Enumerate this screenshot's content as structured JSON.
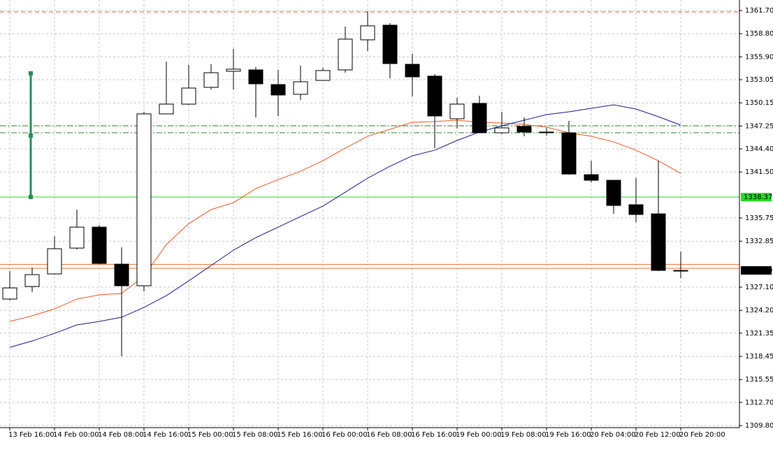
{
  "chart_data": {
    "type": "candlestick",
    "categories": [
      "13 Feb 16:00",
      null,
      "14 Feb 00:00",
      null,
      "14 Feb 08:00",
      null,
      "14 Feb 16:00",
      null,
      "15 Feb 00:00",
      null,
      "15 Feb 08:00",
      null,
      "15 Feb 16:00",
      null,
      "16 Feb 00:00",
      null,
      "16 Feb 08:00",
      null,
      "16 Feb 16:00",
      null,
      "19 Feb 00:00",
      null,
      "19 Feb 08:00",
      null,
      "19 Feb 16:00",
      null,
      "20 Feb 04:00",
      null,
      "20 Feb 12:00",
      null,
      "20 Feb 20:00"
    ],
    "open": [
      1325.62,
      1327.19,
      1328.76,
      1331.99,
      1334.61,
      1329.98,
      1327.28,
      1348.77,
      1349.99,
      1352.09,
      1354.1,
      1354.27,
      1352.44,
      1351.22,
      1352.96,
      1354.27,
      1358.03,
      1359.86,
      1354.97,
      1353.49,
      1348.16,
      1350.08,
      1346.41,
      1347.2,
      1346.5,
      1346.41,
      1341.17,
      1340.47,
      1337.41,
      1336.27,
      1329.2
    ],
    "high": [
      1329.11,
      1329.55,
      1333.48,
      1336.8,
      1334.88,
      1332.08,
      1349.03,
      1355.32,
      1354.88,
      1354.97,
      1356.89,
      1354.62,
      1354.27,
      1354.8,
      1354.54,
      1359.69,
      1361.61,
      1360.13,
      1356.28,
      1353.75,
      1350.78,
      1351.04,
      1349.03,
      1348.33,
      1347.02,
      1347.89,
      1342.91,
      1340.47,
      1340.73,
      1342.91,
      1331.56
    ],
    "low": [
      1325.44,
      1326.49,
      1328.67,
      1331.82,
      1329.98,
      1318.45,
      1326.58,
      1348.77,
      1349.9,
      1351.83,
      1351.83,
      1348.33,
      1348.51,
      1350.52,
      1352.96,
      1353.92,
      1356.63,
      1353.22,
      1350.95,
      1344.49,
      1346.93,
      1346.41,
      1346.23,
      1345.97,
      1346.06,
      1341.17,
      1340.21,
      1336.27,
      1335.23,
      1329.11,
      1328.24
    ],
    "close": [
      1327.01,
      1328.67,
      1331.91,
      1334.61,
      1330.07,
      1327.28,
      1348.77,
      1349.99,
      1352.0,
      1353.92,
      1354.36,
      1352.53,
      1351.13,
      1352.79,
      1354.19,
      1358.12,
      1359.78,
      1355.06,
      1353.4,
      1348.51,
      1349.99,
      1346.41,
      1347.02,
      1346.5,
      1346.5,
      1341.25,
      1340.47,
      1337.32,
      1336.19,
      1329.2,
      1329.2
    ],
    "up_color": "#ffffff",
    "down_color": "#000000",
    "series": [
      {
        "color": "#f0582a",
        "values": [
          1322.82,
          1323.52,
          1324.39,
          1325.62,
          1326.14,
          1326.31,
          1328.5,
          1332.43,
          1335.05,
          1336.8,
          1337.67,
          1339.42,
          1340.56,
          1341.6,
          1342.91,
          1344.49,
          1345.97,
          1346.85,
          1347.72,
          1347.81,
          1347.98,
          1347.72,
          1347.63,
          1347.46,
          1347.11,
          1346.41,
          1345.97,
          1345.27,
          1344.23,
          1342.91,
          1341.34
        ]
      },
      {
        "color": "#1c1c8a",
        "values": [
          1319.59,
          1320.37,
          1321.33,
          1322.38,
          1322.82,
          1323.34,
          1324.57,
          1326.05,
          1327.89,
          1329.81,
          1331.73,
          1333.3,
          1334.61,
          1335.93,
          1337.24,
          1338.98,
          1340.73,
          1342.22,
          1343.53,
          1344.23,
          1345.45,
          1346.5,
          1347.28,
          1347.98,
          1348.68,
          1349.03,
          1349.47,
          1349.9,
          1349.38,
          1348.42,
          1347.37
        ]
      }
    ],
    "hlines": [
      {
        "value": 1361.52,
        "color": "#e06030",
        "style": "dash"
      },
      {
        "value": 1347.28,
        "color": "#2e8b2e",
        "style": "dashdot"
      },
      {
        "value": 1346.41,
        "color": "#2e8b2e",
        "style": "dashdot"
      },
      {
        "value": 1338.37,
        "color": "#22dd22",
        "style": "solid"
      },
      {
        "value": 1329.95,
        "color": "#f07030",
        "style": "solid"
      },
      {
        "value": 1329.46,
        "color": "#f07030",
        "style": "solid"
      }
    ],
    "price_labels": [
      {
        "value": 1338.37,
        "label": "1338.37",
        "color": "#22dd22",
        "text_color": "#000000"
      },
      {
        "value": 1329.2,
        "label": "1329.20",
        "color": "#000000",
        "text_color": "#ffffff"
      }
    ],
    "ylim": [
      1309.54,
      1363.01
    ],
    "yticks": [
      {
        "value": 1361.7,
        "label": "1361.70"
      },
      {
        "value": 1358.8,
        "label": "1358.80"
      },
      {
        "value": 1355.9,
        "label": "1355.90"
      },
      1353.05,
      1350.15,
      1347.25,
      {
        "value": 1344.4,
        "label": "1344.40"
      },
      {
        "value": 1341.5,
        "label": "1341.50"
      },
      1335.75,
      1332.85,
      {
        "value": 1327.1,
        "label": "1327.10"
      },
      {
        "value": 1324.2,
        "label": "1324.20"
      },
      1321.35,
      1318.45,
      1315.55,
      {
        "value": 1312.7,
        "label": "1312.70"
      },
      {
        "value": 1309.8,
        "label": "1309.80"
      }
    ],
    "grid": true
  }
}
